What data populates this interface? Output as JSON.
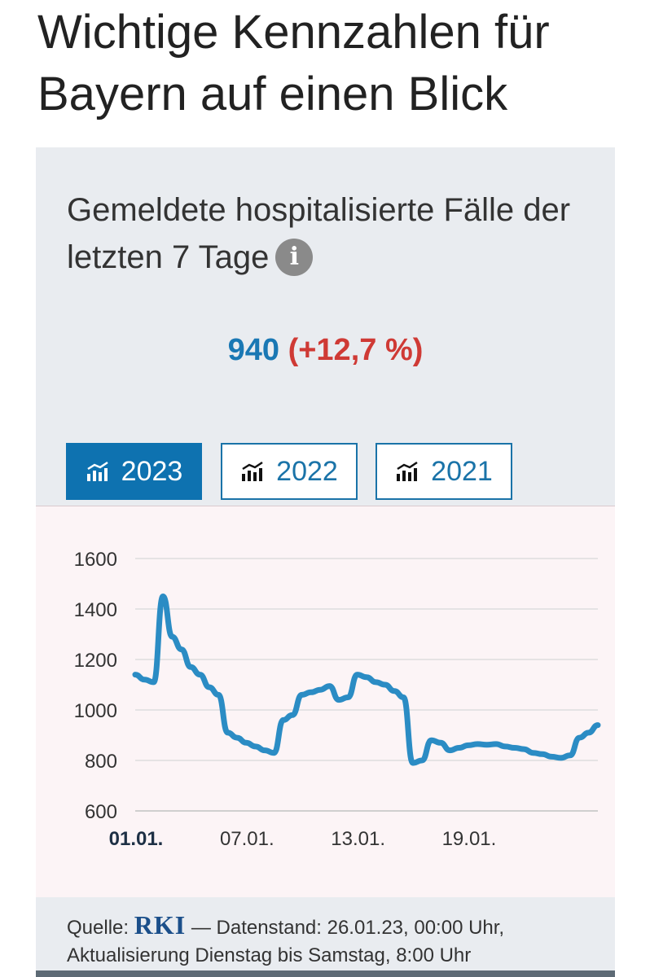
{
  "page": {
    "title": "Wichtige Kennzahlen für Bayern auf einen Blick"
  },
  "card": {
    "title": "Gemeldete hospitalisierte Fälle der letzten 7 Tage",
    "info_icon": "info-icon",
    "kpi_value": "940",
    "kpi_change": "(+12,7 %)",
    "colors": {
      "value": "#1a78b4",
      "change": "#cf3a35",
      "accent": "#0e72b0",
      "line": "#2b8cc4"
    }
  },
  "year_tabs": [
    {
      "label": "2023",
      "icon": "chart-icon",
      "active": true
    },
    {
      "label": "2022",
      "icon": "chart-icon",
      "active": false
    },
    {
      "label": "2021",
      "icon": "chart-icon",
      "active": false
    }
  ],
  "chart_data": {
    "type": "line",
    "ylim": [
      600,
      1600
    ],
    "yticks": [
      "1600",
      "1400",
      "1200",
      "1000",
      "800",
      "600"
    ],
    "ytick_values": [
      1600,
      1400,
      1200,
      1000,
      800,
      600
    ],
    "xlim": [
      1,
      26
    ],
    "xticks": [
      {
        "label": "01.01.",
        "day": 1,
        "bold": true
      },
      {
        "label": "07.01.",
        "day": 7,
        "bold": false
      },
      {
        "label": "13.01.",
        "day": 13,
        "bold": false
      },
      {
        "label": "19.01.",
        "day": 19,
        "bold": false
      }
    ],
    "grid": true,
    "series": [
      {
        "x": [
          1,
          1.5,
          2,
          2.5,
          3,
          3.5,
          4,
          4.5,
          5,
          5.5,
          6,
          6.5,
          7,
          7.5,
          8,
          8.5,
          9,
          9.5,
          10,
          10.5,
          11,
          11.5,
          12,
          12.5,
          13,
          13.5,
          14,
          14.5,
          15,
          15.5,
          16,
          16.5,
          17,
          17.5,
          18,
          18.5,
          19,
          19.5,
          20,
          20.5,
          21,
          21.5,
          22,
          22.5,
          23,
          23.5,
          24,
          24.5,
          25,
          25.5,
          26
        ],
        "values": [
          1140,
          1120,
          1110,
          1450,
          1290,
          1240,
          1170,
          1140,
          1090,
          1060,
          910,
          890,
          870,
          855,
          840,
          830,
          960,
          980,
          1060,
          1070,
          1080,
          1095,
          1040,
          1050,
          1140,
          1130,
          1110,
          1100,
          1075,
          1050,
          790,
          800,
          880,
          870,
          840,
          850,
          860,
          865,
          862,
          865,
          855,
          850,
          845,
          830,
          825,
          815,
          810,
          820,
          890,
          910,
          940
        ]
      }
    ]
  },
  "source": {
    "prefix": "Quelle:",
    "logo": "RKI",
    "text": "— Datenstand: 26.01.23, 00:00 Uhr, Aktualisierung Dienstag bis Samstag, 8:00 Uhr"
  }
}
